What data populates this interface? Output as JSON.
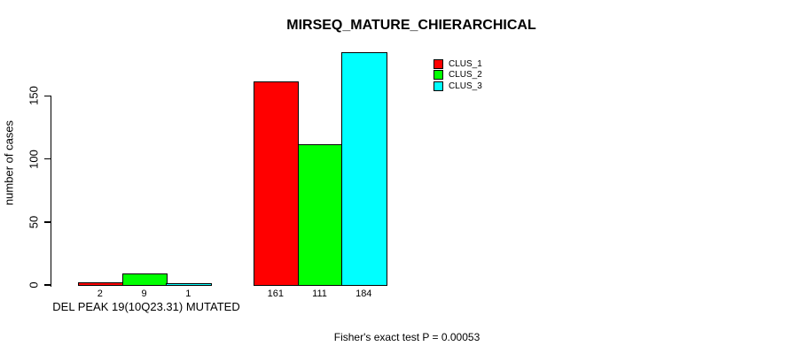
{
  "title": "MIRSEQ_MATURE_CHIERARCHICAL",
  "chart_data": {
    "type": "bar",
    "title": "MIRSEQ_MATURE_CHIERARCHICAL",
    "ylabel": "number of cases",
    "xlabel": "DEL PEAK 19(10Q23.31) MUTATED",
    "ylim": [
      0,
      150
    ],
    "yticks": [
      "0",
      "50",
      "100",
      "150"
    ],
    "grid": false,
    "legend_position": "top-right",
    "series": [
      {
        "name": "CLUS_1",
        "color": "#ff0000",
        "values": [
          2,
          161
        ]
      },
      {
        "name": "CLUS_2",
        "color": "#00ff00",
        "values": [
          9,
          111
        ]
      },
      {
        "name": "CLUS_3",
        "color": "#00ffff",
        "values": [
          1,
          184
        ]
      }
    ],
    "bar_value_labels": [
      [
        "2",
        "9",
        "1"
      ],
      [
        "161",
        "111",
        "184"
      ]
    ],
    "annotation": "Fisher's exact test P = 0.00053"
  },
  "colors": {
    "background": "#ffffff",
    "axis": "#000000",
    "text": "#000000",
    "bar_border": "#000000"
  }
}
